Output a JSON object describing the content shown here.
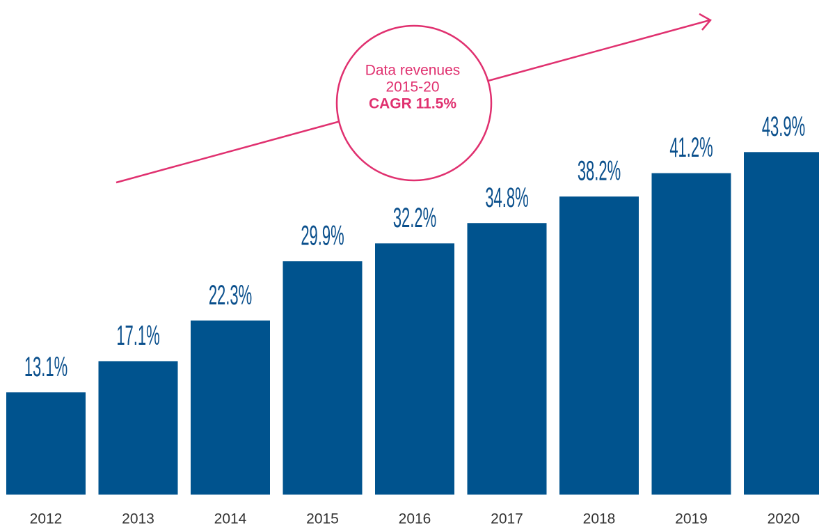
{
  "chart_data": {
    "type": "bar",
    "categories": [
      "2012",
      "2013",
      "2014",
      "2015",
      "2016",
      "2017",
      "2018",
      "2019",
      "2020"
    ],
    "values": [
      13.1,
      17.1,
      22.3,
      29.9,
      32.2,
      34.8,
      38.2,
      41.2,
      43.9
    ],
    "value_labels": [
      "13.1%",
      "17.1%",
      "22.3%",
      "29.9%",
      "32.2%",
      "34.8%",
      "38.2%",
      "41.2%",
      "43.9%"
    ],
    "color": "#00538e",
    "annotation": {
      "lines": [
        "Data revenues",
        "2015-20"
      ],
      "highlight": "CAGR 11.5%",
      "color": "#e0306f"
    }
  }
}
